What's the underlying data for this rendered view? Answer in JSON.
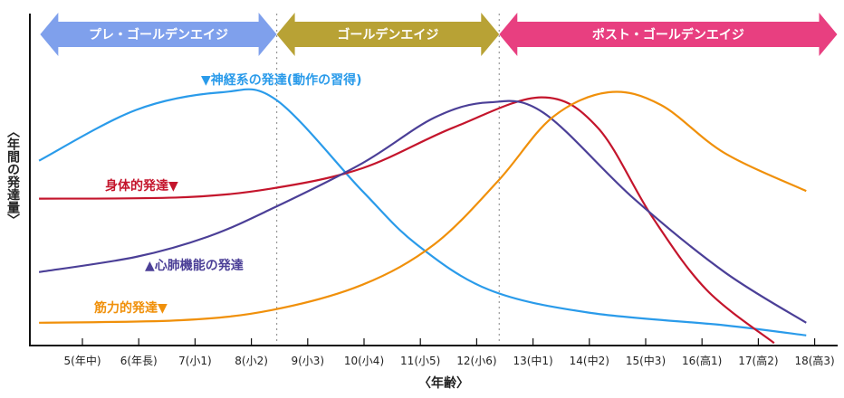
{
  "chart_data": {
    "type": "line",
    "title": "",
    "xlabel": "〈年齢〉",
    "ylabel": "〈年間の発達量〉",
    "xlim": [
      4.25,
      18.4
    ],
    "ylim": [
      0,
      100
    ],
    "grid": false,
    "x_ticks": [
      5,
      6,
      7,
      8,
      9,
      10,
      11,
      12,
      13,
      14,
      15,
      16,
      17,
      18
    ],
    "x_tick_labels": [
      "5(年中)",
      "6(年長)",
      "7(小1)",
      "8(小2)",
      "9(小3)",
      "10(小4)",
      "11(小5)",
      "12(小6)",
      "13(中1)",
      "14(中2)",
      "15(中3)",
      "16(高1)",
      "17(高2)",
      "18(高3)"
    ],
    "periods": [
      {
        "label": "プレ・ゴールデンエイジ",
        "from": 4.25,
        "to": 8.45,
        "color": "#7fa0ec"
      },
      {
        "label": "ゴールデンエイジ",
        "from": 8.45,
        "to": 12.4,
        "color": "#b8a235"
      },
      {
        "label": "ポスト・ゴールデンエイジ",
        "from": 12.4,
        "to": 18.4,
        "color": "#e83f80"
      }
    ],
    "series": [
      {
        "name": "▼神経系の発達(動作の習得)",
        "color": "#2a9bea",
        "points": [
          [
            4.23,
            73
          ],
          [
            5.95,
            93
          ],
          [
            7.48,
            100
          ],
          [
            8.44,
            97
          ],
          [
            9.97,
            61
          ],
          [
            10.93,
            40
          ],
          [
            12.22,
            22
          ],
          [
            13.99,
            13
          ],
          [
            16.4,
            8
          ],
          [
            17.85,
            4
          ]
        ]
      },
      {
        "name": "身体的発達▼",
        "color": "#c4152c",
        "points": [
          [
            4.23,
            58
          ],
          [
            6.75,
            58.5
          ],
          [
            8.36,
            62
          ],
          [
            9.97,
            70
          ],
          [
            11.58,
            86
          ],
          [
            13.15,
            98
          ],
          [
            14.15,
            86
          ],
          [
            15.11,
            51
          ],
          [
            16.08,
            22
          ],
          [
            17.28,
            1
          ]
        ]
      },
      {
        "name": "▲心肺機能の発達",
        "color": "#4b3f97",
        "points": [
          [
            4.23,
            29
          ],
          [
            5.95,
            35
          ],
          [
            7.23,
            43
          ],
          [
            8.36,
            54
          ],
          [
            9.97,
            72
          ],
          [
            11.25,
            90
          ],
          [
            12.22,
            96
          ],
          [
            13.18,
            92
          ],
          [
            14.79,
            58
          ],
          [
            16.4,
            29
          ],
          [
            17.85,
            9
          ]
        ]
      },
      {
        "name": "筋力的発達▼",
        "color": "#f0900a",
        "points": [
          [
            4.23,
            9
          ],
          [
            6.75,
            10
          ],
          [
            8.36,
            14
          ],
          [
            9.97,
            24
          ],
          [
            11.25,
            40
          ],
          [
            12.38,
            65
          ],
          [
            13.34,
            90
          ],
          [
            14.34,
            100
          ],
          [
            15.27,
            95
          ],
          [
            16.4,
            76
          ],
          [
            17.85,
            61
          ]
        ]
      }
    ]
  }
}
